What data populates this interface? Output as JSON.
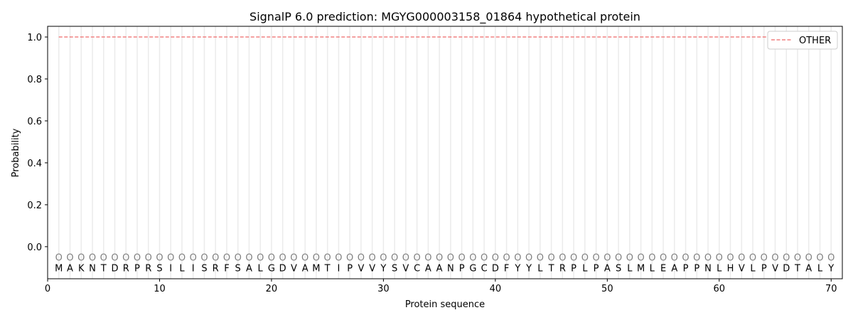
{
  "chart_data": {
    "type": "line",
    "title": "SignalP 6.0 prediction: MGYG000003158_01864 hypothetical protein",
    "xlabel": "Protein sequence",
    "ylabel": "Probability",
    "xlim": [
      0,
      71
    ],
    "ylim": [
      -0.153,
      1.051
    ],
    "xticks": [
      0,
      10,
      20,
      30,
      40,
      50,
      60,
      70
    ],
    "yticks": [
      "0.0",
      "0.2",
      "0.4",
      "0.6",
      "0.8",
      "1.0"
    ],
    "grid": "vertical lines at each residue",
    "legend": {
      "placement": "top-right",
      "entries": [
        "OTHER"
      ]
    },
    "series": [
      {
        "name": "OTHER",
        "color": "#f08080",
        "style": "dashed",
        "x_start": 1,
        "x_end": 70,
        "value": 1.0
      }
    ],
    "sequence": [
      "M",
      "A",
      "K",
      "N",
      "T",
      "D",
      "R",
      "P",
      "R",
      "S",
      "I",
      "L",
      "I",
      "S",
      "R",
      "F",
      "S",
      "A",
      "L",
      "G",
      "D",
      "V",
      "A",
      "M",
      "T",
      "I",
      "P",
      "V",
      "V",
      "Y",
      "S",
      "V",
      "C",
      "A",
      "A",
      "N",
      "P",
      "G",
      "C",
      "D",
      "F",
      "Y",
      "Y",
      "L",
      "T",
      "R",
      "P",
      "L",
      "P",
      "A",
      "S",
      "L",
      "M",
      "L",
      "E",
      "A",
      "P",
      "P",
      "N",
      "L",
      "H",
      "V",
      "L",
      "P",
      "V",
      "D",
      "T",
      "A",
      "L",
      "Y"
    ],
    "predicted_labels": "O",
    "marker_label_y": -0.05,
    "residue_y": -0.1
  }
}
